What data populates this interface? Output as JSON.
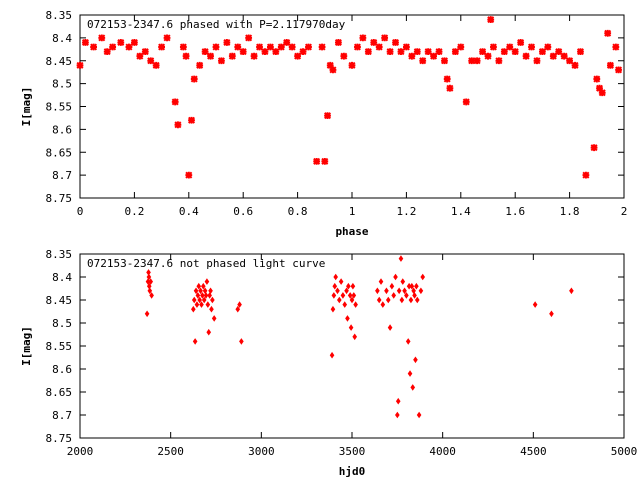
{
  "chart_data": [
    {
      "type": "scatter",
      "title": "072153-2347.6 phased with P=2.117970day",
      "xlabel": "phase",
      "ylabel": "I[mag]",
      "xlim": [
        0,
        2
      ],
      "ylim": [
        8.35,
        8.75
      ],
      "y_inverted": true,
      "grid": false,
      "marker": "star",
      "color": "#ff0000",
      "x_ticks": [
        "0",
        "0.2",
        "0.4",
        "0.6",
        "0.8",
        "1",
        "1.2",
        "1.4",
        "1.6",
        "1.8",
        "2"
      ],
      "y_ticks": [
        "8.35",
        "8.4",
        "8.45",
        "8.5",
        "8.55",
        "8.6",
        "8.65",
        "8.7",
        "8.75"
      ],
      "points": [
        [
          0.0,
          8.46
        ],
        [
          0.02,
          8.41
        ],
        [
          0.05,
          8.42
        ],
        [
          0.08,
          8.4
        ],
        [
          0.1,
          8.43
        ],
        [
          0.12,
          8.42
        ],
        [
          0.15,
          8.41
        ],
        [
          0.18,
          8.42
        ],
        [
          0.2,
          8.41
        ],
        [
          0.22,
          8.44
        ],
        [
          0.24,
          8.43
        ],
        [
          0.26,
          8.45
        ],
        [
          0.28,
          8.46
        ],
        [
          0.3,
          8.42
        ],
        [
          0.32,
          8.4
        ],
        [
          0.35,
          8.54
        ],
        [
          0.36,
          8.59
        ],
        [
          0.38,
          8.42
        ],
        [
          0.39,
          8.44
        ],
        [
          0.4,
          8.7
        ],
        [
          0.41,
          8.58
        ],
        [
          0.42,
          8.49
        ],
        [
          0.44,
          8.46
        ],
        [
          0.46,
          8.43
        ],
        [
          0.48,
          8.44
        ],
        [
          0.5,
          8.42
        ],
        [
          0.52,
          8.45
        ],
        [
          0.54,
          8.41
        ],
        [
          0.56,
          8.44
        ],
        [
          0.58,
          8.42
        ],
        [
          0.6,
          8.43
        ],
        [
          0.62,
          8.4
        ],
        [
          0.64,
          8.44
        ],
        [
          0.66,
          8.42
        ],
        [
          0.68,
          8.43
        ],
        [
          0.7,
          8.42
        ],
        [
          0.72,
          8.43
        ],
        [
          0.74,
          8.42
        ],
        [
          0.76,
          8.41
        ],
        [
          0.78,
          8.42
        ],
        [
          0.8,
          8.44
        ],
        [
          0.82,
          8.43
        ],
        [
          0.84,
          8.42
        ],
        [
          0.87,
          8.67
        ],
        [
          0.89,
          8.42
        ],
        [
          0.9,
          8.67
        ],
        [
          0.91,
          8.57
        ],
        [
          0.92,
          8.46
        ],
        [
          0.93,
          8.47
        ],
        [
          0.95,
          8.41
        ],
        [
          0.97,
          8.44
        ],
        [
          1.0,
          8.46
        ],
        [
          1.02,
          8.42
        ],
        [
          1.04,
          8.4
        ],
        [
          1.06,
          8.43
        ],
        [
          1.08,
          8.41
        ],
        [
          1.1,
          8.42
        ],
        [
          1.12,
          8.4
        ],
        [
          1.14,
          8.43
        ],
        [
          1.16,
          8.41
        ],
        [
          1.18,
          8.43
        ],
        [
          1.2,
          8.42
        ],
        [
          1.22,
          8.44
        ],
        [
          1.24,
          8.43
        ],
        [
          1.26,
          8.45
        ],
        [
          1.28,
          8.43
        ],
        [
          1.3,
          8.44
        ],
        [
          1.32,
          8.43
        ],
        [
          1.34,
          8.45
        ],
        [
          1.35,
          8.49
        ],
        [
          1.36,
          8.51
        ],
        [
          1.38,
          8.43
        ],
        [
          1.4,
          8.42
        ],
        [
          1.42,
          8.54
        ],
        [
          1.44,
          8.45
        ],
        [
          1.46,
          8.45
        ],
        [
          1.48,
          8.43
        ],
        [
          1.5,
          8.44
        ],
        [
          1.51,
          8.36
        ],
        [
          1.52,
          8.42
        ],
        [
          1.54,
          8.45
        ],
        [
          1.56,
          8.43
        ],
        [
          1.58,
          8.42
        ],
        [
          1.6,
          8.43
        ],
        [
          1.62,
          8.41
        ],
        [
          1.64,
          8.44
        ],
        [
          1.66,
          8.42
        ],
        [
          1.68,
          8.45
        ],
        [
          1.7,
          8.43
        ],
        [
          1.72,
          8.42
        ],
        [
          1.74,
          8.44
        ],
        [
          1.76,
          8.43
        ],
        [
          1.78,
          8.44
        ],
        [
          1.8,
          8.45
        ],
        [
          1.82,
          8.46
        ],
        [
          1.84,
          8.43
        ],
        [
          1.86,
          8.7
        ],
        [
          1.89,
          8.64
        ],
        [
          1.9,
          8.49
        ],
        [
          1.91,
          8.51
        ],
        [
          1.92,
          8.52
        ],
        [
          1.94,
          8.39
        ],
        [
          1.95,
          8.46
        ],
        [
          1.97,
          8.42
        ],
        [
          1.98,
          8.47
        ]
      ]
    },
    {
      "type": "scatter",
      "title": "072153-2347.6 not phased light curve",
      "xlabel": "hjd0",
      "ylabel": "I[mag]",
      "xlim": [
        2000,
        5000
      ],
      "ylim": [
        8.35,
        8.75
      ],
      "y_inverted": true,
      "grid": false,
      "marker": "diamond",
      "color": "#ff0000",
      "x_ticks": [
        "2000",
        "2500",
        "3000",
        "3500",
        "4000",
        "4500",
        "5000"
      ],
      "y_ticks": [
        "8.35",
        "8.4",
        "8.45",
        "8.5",
        "8.55",
        "8.6",
        "8.65",
        "8.7",
        "8.75"
      ],
      "points": [
        [
          2370,
          8.48
        ],
        [
          2375,
          8.41
        ],
        [
          2378,
          8.39
        ],
        [
          2380,
          8.4
        ],
        [
          2382,
          8.42
        ],
        [
          2385,
          8.43
        ],
        [
          2390,
          8.41
        ],
        [
          2395,
          8.44
        ],
        [
          2625,
          8.47
        ],
        [
          2630,
          8.45
        ],
        [
          2635,
          8.54
        ],
        [
          2640,
          8.43
        ],
        [
          2645,
          8.46
        ],
        [
          2650,
          8.44
        ],
        [
          2655,
          8.42
        ],
        [
          2660,
          8.45
        ],
        [
          2665,
          8.43
        ],
        [
          2670,
          8.46
        ],
        [
          2675,
          8.44
        ],
        [
          2680,
          8.42
        ],
        [
          2685,
          8.45
        ],
        [
          2690,
          8.43
        ],
        [
          2695,
          8.44
        ],
        [
          2700,
          8.41
        ],
        [
          2705,
          8.46
        ],
        [
          2710,
          8.52
        ],
        [
          2715,
          8.44
        ],
        [
          2720,
          8.43
        ],
        [
          2725,
          8.47
        ],
        [
          2730,
          8.45
        ],
        [
          2740,
          8.49
        ],
        [
          2870,
          8.47
        ],
        [
          2880,
          8.46
        ],
        [
          2890,
          8.54
        ],
        [
          3390,
          8.57
        ],
        [
          3395,
          8.47
        ],
        [
          3400,
          8.44
        ],
        [
          3405,
          8.42
        ],
        [
          3410,
          8.4
        ],
        [
          3420,
          8.43
        ],
        [
          3430,
          8.45
        ],
        [
          3440,
          8.41
        ],
        [
          3450,
          8.44
        ],
        [
          3460,
          8.46
        ],
        [
          3470,
          8.43
        ],
        [
          3475,
          8.49
        ],
        [
          3480,
          8.42
        ],
        [
          3490,
          8.44
        ],
        [
          3495,
          8.51
        ],
        [
          3500,
          8.45
        ],
        [
          3505,
          8.42
        ],
        [
          3510,
          8.44
        ],
        [
          3515,
          8.53
        ],
        [
          3520,
          8.46
        ],
        [
          3640,
          8.43
        ],
        [
          3650,
          8.45
        ],
        [
          3660,
          8.41
        ],
        [
          3670,
          8.46
        ],
        [
          3690,
          8.43
        ],
        [
          3700,
          8.45
        ],
        [
          3710,
          8.51
        ],
        [
          3720,
          8.42
        ],
        [
          3730,
          8.44
        ],
        [
          3740,
          8.4
        ],
        [
          3750,
          8.7
        ],
        [
          3755,
          8.67
        ],
        [
          3760,
          8.43
        ],
        [
          3770,
          8.36
        ],
        [
          3775,
          8.45
        ],
        [
          3780,
          8.41
        ],
        [
          3790,
          8.43
        ],
        [
          3800,
          8.44
        ],
        [
          3810,
          8.54
        ],
        [
          3815,
          8.42
        ],
        [
          3820,
          8.61
        ],
        [
          3825,
          8.45
        ],
        [
          3830,
          8.42
        ],
        [
          3835,
          8.64
        ],
        [
          3840,
          8.43
        ],
        [
          3845,
          8.44
        ],
        [
          3850,
          8.58
        ],
        [
          3855,
          8.42
        ],
        [
          3860,
          8.45
        ],
        [
          3870,
          8.7
        ],
        [
          3880,
          8.43
        ],
        [
          3890,
          8.4
        ],
        [
          4510,
          8.46
        ],
        [
          4600,
          8.48
        ],
        [
          4710,
          8.43
        ]
      ]
    }
  ]
}
